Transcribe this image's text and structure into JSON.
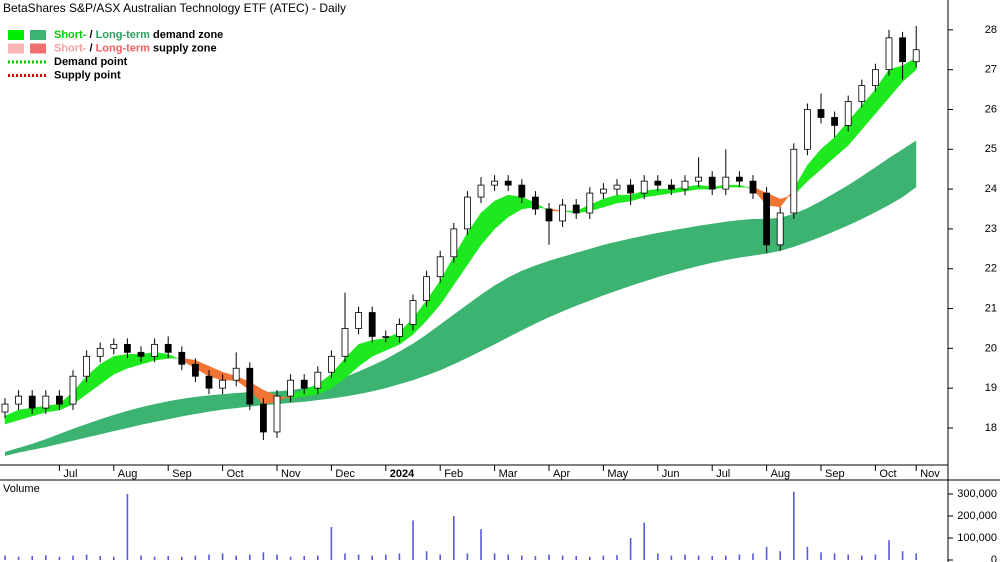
{
  "chart_data": {
    "type": "candlestick",
    "title": "BetaShares S&P/ASX Australian Technology ETF (ATEC) - Daily",
    "legend": [
      {
        "style": "box",
        "swatches": [
          "#00ee00",
          "#3cb371"
        ],
        "parts": [
          {
            "text": "Short-",
            "color": "#00d000"
          },
          {
            "text": " / "
          },
          {
            "text": "Long-term",
            "color": "#2e9e5e"
          },
          {
            "text": " demand zone"
          }
        ]
      },
      {
        "style": "box",
        "swatches": [
          "#f7b5b5",
          "#f07070"
        ],
        "parts": [
          {
            "text": "Short-",
            "color": "#f4a0a0"
          },
          {
            "text": " / "
          },
          {
            "text": "Long-term",
            "color": "#f06060"
          },
          {
            "text": " supply zone"
          }
        ]
      },
      {
        "style": "dots",
        "swatches": [
          "#00cc00"
        ],
        "parts": [
          {
            "text": "Demand point"
          }
        ]
      },
      {
        "style": "dots",
        "swatches": [
          "#dd0000"
        ],
        "parts": [
          {
            "text": "Supply point"
          }
        ]
      }
    ],
    "categories": [
      null,
      null,
      null,
      null,
      "Jul",
      null,
      null,
      null,
      "Aug",
      null,
      null,
      null,
      "Sep",
      null,
      null,
      null,
      "Oct",
      null,
      null,
      null,
      "Nov",
      null,
      null,
      null,
      "Dec",
      null,
      null,
      null,
      "2024",
      null,
      null,
      null,
      "Feb",
      null,
      null,
      null,
      "Mar",
      null,
      null,
      null,
      "Apr",
      null,
      null,
      null,
      "May",
      null,
      null,
      null,
      "Jun",
      null,
      null,
      null,
      "Jul",
      null,
      null,
      null,
      "Aug",
      null,
      null,
      null,
      "Sep",
      null,
      null,
      null,
      "Oct",
      null,
      null,
      "Nov"
    ],
    "open": [
      18.4,
      18.6,
      18.8,
      18.5,
      18.8,
      18.6,
      19.3,
      19.8,
      20.0,
      20.1,
      19.9,
      19.8,
      20.1,
      19.9,
      19.6,
      19.3,
      19.0,
      19.2,
      19.5,
      18.6,
      17.9,
      18.8,
      19.2,
      19.0,
      19.4,
      19.8,
      20.5,
      20.9,
      20.3,
      20.3,
      20.6,
      21.2,
      21.8,
      22.3,
      23.0,
      23.8,
      24.1,
      24.2,
      24.1,
      23.8,
      23.5,
      23.2,
      23.6,
      23.4,
      23.9,
      24.0,
      24.1,
      23.9,
      24.2,
      24.1,
      24.0,
      24.2,
      24.3,
      24.0,
      24.3,
      24.2,
      23.9,
      22.6,
      23.4,
      25.0,
      26.0,
      25.8,
      25.6,
      26.2,
      26.6,
      27.0,
      27.8,
      27.2
    ],
    "high": [
      18.75,
      18.95,
      18.95,
      18.95,
      18.95,
      19.45,
      19.95,
      20.15,
      20.25,
      20.25,
      20.05,
      20.25,
      20.3,
      20.05,
      19.75,
      19.45,
      19.35,
      19.9,
      19.65,
      18.75,
      18.95,
      19.35,
      19.35,
      19.55,
      19.95,
      21.4,
      21.05,
      21.05,
      20.45,
      20.75,
      21.35,
      21.95,
      22.45,
      23.15,
      23.95,
      24.3,
      24.35,
      24.35,
      24.25,
      23.95,
      23.65,
      23.75,
      23.75,
      24.05,
      24.15,
      24.25,
      24.25,
      24.35,
      24.35,
      24.25,
      24.35,
      24.8,
      24.45,
      25.0,
      24.45,
      24.35,
      24.05,
      23.55,
      25.15,
      26.15,
      26.4,
      25.95,
      26.35,
      26.75,
      27.15,
      28.0,
      27.95,
      28.1
    ],
    "low": [
      18.25,
      18.45,
      18.35,
      18.35,
      18.45,
      18.45,
      19.15,
      19.65,
      19.85,
      19.75,
      19.65,
      19.65,
      19.75,
      19.45,
      19.15,
      18.85,
      18.85,
      19.05,
      18.45,
      17.7,
      17.75,
      18.65,
      18.85,
      18.85,
      19.25,
      19.65,
      20.35,
      20.15,
      20.15,
      20.15,
      20.45,
      21.05,
      21.65,
      22.15,
      22.85,
      23.65,
      23.95,
      23.95,
      23.65,
      23.35,
      22.6,
      23.05,
      23.25,
      23.25,
      23.75,
      23.85,
      23.6,
      23.75,
      23.95,
      23.85,
      23.85,
      24.05,
      23.85,
      23.85,
      24.05,
      23.75,
      22.4,
      22.45,
      23.25,
      24.85,
      25.65,
      25.3,
      25.45,
      26.05,
      26.45,
      26.85,
      26.75,
      27.05
    ],
    "close": [
      18.6,
      18.8,
      18.5,
      18.8,
      18.6,
      19.3,
      19.8,
      20.0,
      20.1,
      19.9,
      19.8,
      20.1,
      19.9,
      19.6,
      19.3,
      19.0,
      19.2,
      19.5,
      18.6,
      17.9,
      18.8,
      19.2,
      19.0,
      19.4,
      19.8,
      20.5,
      20.9,
      20.3,
      20.3,
      20.6,
      21.2,
      21.8,
      22.3,
      23.0,
      23.8,
      24.1,
      24.2,
      24.1,
      23.8,
      23.5,
      23.2,
      23.6,
      23.4,
      23.9,
      24.0,
      24.1,
      23.9,
      24.2,
      24.1,
      24.0,
      24.2,
      24.3,
      24.0,
      24.3,
      24.2,
      23.9,
      22.6,
      23.4,
      25.0,
      26.0,
      25.8,
      25.6,
      26.2,
      26.6,
      27.0,
      27.8,
      27.2,
      27.5
    ],
    "ylim": [
      17.07,
      28.75
    ],
    "yticks": [
      18,
      19,
      20,
      21,
      22,
      23,
      24,
      25,
      26,
      27,
      28
    ],
    "short_zone": {
      "fast": [
        18.3,
        18.45,
        18.5,
        18.55,
        18.6,
        18.9,
        19.3,
        19.6,
        19.8,
        19.85,
        19.85,
        19.9,
        19.85,
        19.7,
        19.5,
        19.3,
        19.2,
        19.2,
        18.95,
        18.6,
        18.65,
        18.85,
        18.95,
        19.1,
        19.35,
        19.75,
        20.1,
        20.2,
        20.25,
        20.4,
        20.75,
        21.2,
        21.7,
        22.3,
        22.9,
        23.4,
        23.7,
        23.85,
        23.8,
        23.65,
        23.45,
        23.45,
        23.45,
        23.6,
        23.75,
        23.85,
        23.85,
        23.95,
        24.0,
        24.0,
        24.05,
        24.1,
        24.05,
        24.1,
        24.1,
        24.0,
        23.6,
        23.55,
        24.0,
        24.6,
        25.0,
        25.3,
        25.7,
        26.1,
        26.5,
        27.0,
        27.1,
        27.3
      ],
      "slow": [
        18.1,
        18.2,
        18.3,
        18.4,
        18.45,
        18.6,
        18.85,
        19.1,
        19.35,
        19.5,
        19.6,
        19.7,
        19.75,
        19.75,
        19.7,
        19.55,
        19.4,
        19.3,
        19.15,
        18.95,
        18.8,
        18.75,
        18.8,
        18.85,
        19.0,
        19.25,
        19.55,
        19.8,
        19.95,
        20.1,
        20.35,
        20.7,
        21.1,
        21.6,
        22.1,
        22.6,
        23.0,
        23.3,
        23.5,
        23.55,
        23.5,
        23.45,
        23.4,
        23.45,
        23.55,
        23.65,
        23.7,
        23.8,
        23.85,
        23.9,
        23.95,
        24.0,
        24.0,
        24.05,
        24.05,
        24.05,
        23.9,
        23.75,
        23.85,
        24.2,
        24.5,
        24.8,
        25.1,
        25.5,
        25.9,
        26.3,
        26.7,
        27.0
      ],
      "demand_color": "#1ee81e",
      "supply_color": "#f07434"
    },
    "long_zone": {
      "fast": [
        17.4,
        17.5,
        17.6,
        17.72,
        17.85,
        17.98,
        18.1,
        18.22,
        18.33,
        18.43,
        18.52,
        18.6,
        18.67,
        18.73,
        18.78,
        18.82,
        18.85,
        18.88,
        18.9,
        18.9,
        18.92,
        18.95,
        19.0,
        19.07,
        19.16,
        19.28,
        19.42,
        19.57,
        19.73,
        19.92,
        20.12,
        20.35,
        20.6,
        20.85,
        21.1,
        21.35,
        21.58,
        21.78,
        21.95,
        22.08,
        22.2,
        22.3,
        22.4,
        22.5,
        22.6,
        22.68,
        22.76,
        22.83,
        22.9,
        22.96,
        23.02,
        23.08,
        23.13,
        23.18,
        23.22,
        23.25,
        23.25,
        23.28,
        23.38,
        23.52,
        23.7,
        23.9,
        24.1,
        24.32,
        24.55,
        24.78,
        25.0,
        25.22
      ],
      "slow": [
        17.3,
        17.38,
        17.45,
        17.52,
        17.6,
        17.68,
        17.76,
        17.84,
        17.92,
        18.0,
        18.08,
        18.15,
        18.22,
        18.29,
        18.35,
        18.41,
        18.46,
        18.5,
        18.54,
        18.57,
        18.6,
        18.63,
        18.66,
        18.7,
        18.74,
        18.79,
        18.85,
        18.92,
        19.0,
        19.1,
        19.2,
        19.32,
        19.45,
        19.6,
        19.76,
        19.93,
        20.1,
        20.28,
        20.45,
        20.62,
        20.78,
        20.93,
        21.07,
        21.2,
        21.33,
        21.45,
        21.57,
        21.68,
        21.79,
        21.89,
        21.98,
        22.07,
        22.15,
        22.22,
        22.28,
        22.33,
        22.38,
        22.45,
        22.55,
        22.67,
        22.8,
        22.94,
        23.09,
        23.25,
        23.42,
        23.6,
        23.8,
        24.05
      ],
      "color": "#3cb371",
      "supply_color": "#f07070"
    },
    "volume": {
      "label": "Volume",
      "values": [
        20000,
        15000,
        18000,
        22000,
        15000,
        20000,
        25000,
        18000,
        15000,
        300000,
        20000,
        15000,
        18000,
        15000,
        20000,
        25000,
        30000,
        20000,
        25000,
        35000,
        25000,
        15000,
        18000,
        20000,
        150000,
        30000,
        25000,
        20000,
        25000,
        30000,
        180000,
        40000,
        25000,
        200000,
        30000,
        140000,
        30000,
        25000,
        20000,
        18000,
        25000,
        20000,
        18000,
        15000,
        20000,
        22000,
        100000,
        170000,
        30000,
        20000,
        25000,
        20000,
        18000,
        20000,
        25000,
        30000,
        60000,
        40000,
        310000,
        60000,
        35000,
        30000,
        25000,
        20000,
        25000,
        90000,
        40000,
        30000
      ],
      "color": "#5a5ad8",
      "label_color": "#4b2a8a",
      "ylim": [
        0,
        363600
      ],
      "yticks": [
        0,
        {
          "value": 100000,
          "label": "100,000"
        },
        {
          "value": 200000,
          "label": "200,000"
        },
        {
          "value": 300000,
          "label": "300,000"
        }
      ]
    }
  }
}
